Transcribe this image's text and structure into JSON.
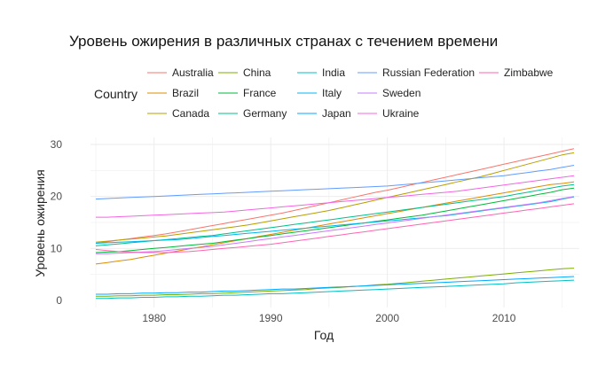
{
  "chart_data": {
    "type": "line",
    "title": "Уровень ожирения в различных странах с течением времени",
    "xlabel": "Год",
    "ylabel": "Уровень ожирения",
    "xlim": [
      1975,
      2016
    ],
    "ylim": [
      0,
      30
    ],
    "x_ticks": [
      1980,
      1990,
      2000,
      2010
    ],
    "y_ticks": [
      0,
      10,
      20,
      30
    ],
    "grid": true,
    "legend": {
      "title": "Country",
      "placement": "top",
      "columns": [
        [
          "Australia",
          "Brazil",
          "Canada"
        ],
        [
          "China",
          "France",
          "Germany"
        ],
        [
          "India",
          "Italy",
          "Japan"
        ],
        [
          "Russian Federation",
          "Sweden",
          "Ukraine"
        ],
        [
          "Zimbabwe"
        ]
      ]
    },
    "x": [
      1975,
      1976,
      1977,
      1978,
      1979,
      1980,
      1981,
      1982,
      1983,
      1984,
      1985,
      1986,
      1987,
      1988,
      1989,
      1990,
      1991,
      1992,
      1993,
      1994,
      1995,
      1996,
      1997,
      1998,
      1999,
      2000,
      2001,
      2002,
      2003,
      2004,
      2005,
      2006,
      2007,
      2008,
      2009,
      2010,
      2011,
      2012,
      2013,
      2014,
      2015,
      2016
    ],
    "series": [
      {
        "name": "Australia",
        "color": "#F8766D",
        "values": [
          11.0,
          11.3,
          11.6,
          11.9,
          12.2,
          12.5,
          12.8,
          13.2,
          13.6,
          14.0,
          14.4,
          14.8,
          15.2,
          15.6,
          16.0,
          16.4,
          16.8,
          17.3,
          17.8,
          18.3,
          18.8,
          19.3,
          19.8,
          20.3,
          20.8,
          21.2,
          21.7,
          22.2,
          22.7,
          23.2,
          23.7,
          24.2,
          24.7,
          25.2,
          25.7,
          26.2,
          26.7,
          27.2,
          27.7,
          28.2,
          28.7,
          29.2
        ]
      },
      {
        "name": "Brazil",
        "color": "#DE8C00",
        "values": [
          7.0,
          7.3,
          7.6,
          7.9,
          8.3,
          8.7,
          9.1,
          9.5,
          9.9,
          10.3,
          10.7,
          11.1,
          11.5,
          11.9,
          12.3,
          12.7,
          13.1,
          13.5,
          13.9,
          14.3,
          14.7,
          15.1,
          15.5,
          15.9,
          16.3,
          16.7,
          17.1,
          17.5,
          17.9,
          18.3,
          18.7,
          19.1,
          19.5,
          19.9,
          20.3,
          20.7,
          21.1,
          21.5,
          21.9,
          22.3,
          22.5,
          22.8
        ]
      },
      {
        "name": "Canada",
        "color": "#B79F00",
        "values": [
          11.2,
          11.4,
          11.6,
          11.8,
          12.0,
          12.2,
          12.4,
          12.7,
          13.0,
          13.3,
          13.6,
          13.9,
          14.2,
          14.5,
          14.9,
          15.3,
          15.7,
          16.1,
          16.5,
          16.9,
          17.3,
          17.8,
          18.3,
          18.8,
          19.3,
          19.8,
          20.3,
          20.8,
          21.3,
          21.8,
          22.3,
          22.8,
          23.3,
          23.8,
          24.4,
          25.0,
          25.6,
          26.2,
          26.8,
          27.4,
          28.0,
          28.4
        ]
      },
      {
        "name": "China",
        "color": "#7CAE00",
        "values": [
          0.8,
          0.8,
          0.9,
          0.9,
          1.0,
          1.0,
          1.1,
          1.1,
          1.2,
          1.3,
          1.3,
          1.4,
          1.5,
          1.6,
          1.7,
          1.8,
          1.9,
          2.0,
          2.1,
          2.3,
          2.4,
          2.5,
          2.7,
          2.8,
          3.0,
          3.1,
          3.3,
          3.5,
          3.7,
          3.9,
          4.1,
          4.3,
          4.5,
          4.7,
          4.9,
          5.1,
          5.3,
          5.5,
          5.7,
          5.9,
          6.1,
          6.2
        ]
      },
      {
        "name": "France",
        "color": "#00BA38",
        "values": [
          9.2,
          9.3,
          9.4,
          9.6,
          9.8,
          10.0,
          10.2,
          10.4,
          10.6,
          10.8,
          11.0,
          11.3,
          11.6,
          11.9,
          12.2,
          12.5,
          12.8,
          13.1,
          13.4,
          13.7,
          14.0,
          14.3,
          14.6,
          14.9,
          15.2,
          15.5,
          15.8,
          16.1,
          16.4,
          16.8,
          17.2,
          17.6,
          18.0,
          18.4,
          18.8,
          19.2,
          19.6,
          20.0,
          20.4,
          20.8,
          21.3,
          21.6
        ]
      },
      {
        "name": "Germany",
        "color": "#00C08B",
        "values": [
          10.5,
          10.7,
          10.9,
          11.1,
          11.3,
          11.5,
          11.7,
          11.9,
          12.1,
          12.3,
          12.5,
          12.8,
          13.1,
          13.4,
          13.7,
          14.0,
          14.3,
          14.6,
          14.9,
          15.2,
          15.5,
          15.8,
          16.1,
          16.4,
          16.7,
          17.0,
          17.3,
          17.6,
          17.9,
          18.2,
          18.5,
          18.8,
          19.1,
          19.4,
          19.7,
          20.0,
          20.4,
          20.8,
          21.2,
          21.6,
          22.0,
          22.3
        ]
      },
      {
        "name": "India",
        "color": "#00BFC4",
        "values": [
          0.4,
          0.4,
          0.5,
          0.5,
          0.6,
          0.6,
          0.7,
          0.7,
          0.8,
          0.8,
          0.9,
          1.0,
          1.0,
          1.1,
          1.2,
          1.3,
          1.3,
          1.4,
          1.5,
          1.6,
          1.7,
          1.8,
          1.9,
          2.0,
          2.1,
          2.2,
          2.3,
          2.4,
          2.5,
          2.6,
          2.7,
          2.8,
          2.9,
          3.0,
          3.1,
          3.2,
          3.4,
          3.5,
          3.6,
          3.7,
          3.8,
          3.9
        ]
      },
      {
        "name": "Italy",
        "color": "#00B4F0",
        "values": [
          11.0,
          11.1,
          11.2,
          11.3,
          11.4,
          11.5,
          11.6,
          11.7,
          11.9,
          12.1,
          12.3,
          12.5,
          12.7,
          12.9,
          13.1,
          13.3,
          13.5,
          13.7,
          13.9,
          14.1,
          14.3,
          14.5,
          14.7,
          14.9,
          15.1,
          15.3,
          15.5,
          15.7,
          15.9,
          16.1,
          16.3,
          16.6,
          16.9,
          17.2,
          17.5,
          17.8,
          18.1,
          18.4,
          18.7,
          19.0,
          19.5,
          19.9
        ]
      },
      {
        "name": "Japan",
        "color": "#00A9FF",
        "values": [
          1.2,
          1.2,
          1.3,
          1.3,
          1.4,
          1.4,
          1.5,
          1.5,
          1.6,
          1.6,
          1.7,
          1.8,
          1.8,
          1.9,
          2.0,
          2.1,
          2.2,
          2.2,
          2.3,
          2.4,
          2.5,
          2.6,
          2.7,
          2.8,
          2.9,
          3.0,
          3.1,
          3.2,
          3.3,
          3.4,
          3.5,
          3.6,
          3.7,
          3.8,
          3.9,
          4.0,
          4.1,
          4.2,
          4.3,
          4.4,
          4.5,
          4.6
        ]
      },
      {
        "name": "Russian Federation",
        "color": "#619CFF",
        "values": [
          19.5,
          19.6,
          19.7,
          19.8,
          19.9,
          20.0,
          20.1,
          20.2,
          20.3,
          20.4,
          20.5,
          20.6,
          20.7,
          20.8,
          20.9,
          21.0,
          21.1,
          21.2,
          21.3,
          21.4,
          21.5,
          21.6,
          21.7,
          21.8,
          21.9,
          22.0,
          22.2,
          22.4,
          22.6,
          22.8,
          23.0,
          23.2,
          23.4,
          23.6,
          23.8,
          24.0,
          24.3,
          24.6,
          24.9,
          25.2,
          25.6,
          26.0
        ]
      },
      {
        "name": "Sweden",
        "color": "#C77CFF",
        "values": [
          9.0,
          9.0,
          9.1,
          9.2,
          9.3,
          9.4,
          9.6,
          9.8,
          10.0,
          10.2,
          10.4,
          10.7,
          11.0,
          11.3,
          11.6,
          11.9,
          12.2,
          12.5,
          12.8,
          13.1,
          13.4,
          13.7,
          14.0,
          14.3,
          14.6,
          14.9,
          15.2,
          15.5,
          15.8,
          16.1,
          16.4,
          16.7,
          17.0,
          17.3,
          17.6,
          17.9,
          18.2,
          18.5,
          18.8,
          19.2,
          19.6,
          20.0
        ]
      },
      {
        "name": "Ukraine",
        "color": "#F564E3",
        "values": [
          16.0,
          16.0,
          16.1,
          16.2,
          16.3,
          16.4,
          16.5,
          16.6,
          16.7,
          16.8,
          16.9,
          17.0,
          17.2,
          17.4,
          17.6,
          17.8,
          18.0,
          18.2,
          18.4,
          18.6,
          18.8,
          19.0,
          19.2,
          19.4,
          19.6,
          19.8,
          20.0,
          20.2,
          20.4,
          20.6,
          20.8,
          21.0,
          21.3,
          21.6,
          21.9,
          22.2,
          22.5,
          22.8,
          23.1,
          23.4,
          23.7,
          24.0
        ]
      },
      {
        "name": "Zimbabwe",
        "color": "#FF64B0",
        "values": [
          9.8,
          9.6,
          9.4,
          9.3,
          9.2,
          9.2,
          9.2,
          9.3,
          9.4,
          9.6,
          9.8,
          10.0,
          10.2,
          10.4,
          10.6,
          10.8,
          11.1,
          11.4,
          11.7,
          12.0,
          12.3,
          12.6,
          12.9,
          13.2,
          13.5,
          13.8,
          14.1,
          14.4,
          14.7,
          15.0,
          15.3,
          15.6,
          15.9,
          16.2,
          16.5,
          16.8,
          17.1,
          17.4,
          17.7,
          18.0,
          18.3,
          18.6
        ]
      }
    ]
  }
}
